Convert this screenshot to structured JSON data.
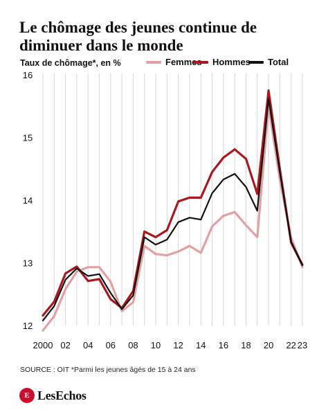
{
  "title": "Le chômage des jeunes continue de diminuer dans le monde",
  "colors": {
    "femmes": "#e3a0a3",
    "hommes": "#a7191f",
    "total": "#111111",
    "grid": "#d6d6d6",
    "logo": "#c8102e"
  },
  "source": "SOURCE : OIT *Parmi les jeunes âgés de 15 à 24 ans",
  "logo": {
    "text": "LesEchos",
    "icon": "les-echos-logo-icon"
  },
  "chart_data": {
    "type": "line",
    "ylabel": "Taux de chômage*, en %",
    "ylim": [
      12,
      16
    ],
    "y_ticks": [
      12,
      13,
      14,
      15,
      16
    ],
    "x": [
      2000,
      2001,
      2002,
      2003,
      2004,
      2005,
      2006,
      2007,
      2008,
      2009,
      2010,
      2011,
      2012,
      2013,
      2014,
      2015,
      2016,
      2017,
      2018,
      2019,
      2020,
      2021,
      2022,
      2023
    ],
    "x_ticks": [
      {
        "x": 2000,
        "label": "2000"
      },
      {
        "x": 2002,
        "label": "02"
      },
      {
        "x": 2004,
        "label": "04"
      },
      {
        "x": 2006,
        "label": "06"
      },
      {
        "x": 2008,
        "label": "08"
      },
      {
        "x": 2010,
        "label": "10"
      },
      {
        "x": 2012,
        "label": "12"
      },
      {
        "x": 2014,
        "label": "14"
      },
      {
        "x": 2016,
        "label": "16"
      },
      {
        "x": 2018,
        "label": "18"
      },
      {
        "x": 2020,
        "label": "20"
      },
      {
        "x": 2022,
        "label": "22"
      },
      {
        "x": 2023,
        "label": "23"
      }
    ],
    "grid": "vertical",
    "legend_position": "top",
    "series": [
      {
        "name": "Femmes",
        "key": "femmes",
        "values": [
          11.92,
          12.15,
          12.58,
          12.86,
          12.93,
          12.93,
          12.7,
          12.23,
          12.37,
          13.27,
          13.14,
          13.12,
          13.18,
          13.27,
          13.16,
          13.58,
          13.75,
          13.81,
          13.6,
          13.41,
          15.5,
          14.32,
          13.4,
          12.93
        ]
      },
      {
        "name": "Hommes",
        "key": "hommes",
        "values": [
          12.16,
          12.38,
          12.83,
          12.94,
          12.71,
          12.74,
          12.42,
          12.28,
          12.55,
          13.5,
          13.41,
          13.52,
          13.98,
          14.04,
          14.04,
          14.45,
          14.68,
          14.81,
          14.66,
          14.1,
          15.75,
          14.5,
          13.32,
          12.97
        ]
      },
      {
        "name": "Total",
        "key": "total",
        "values": [
          12.08,
          12.31,
          12.73,
          12.91,
          12.79,
          12.82,
          12.52,
          12.26,
          12.48,
          13.41,
          13.29,
          13.37,
          13.65,
          13.72,
          13.69,
          14.11,
          14.33,
          14.42,
          14.21,
          13.83,
          15.62,
          14.44,
          13.34,
          12.96
        ]
      }
    ]
  }
}
